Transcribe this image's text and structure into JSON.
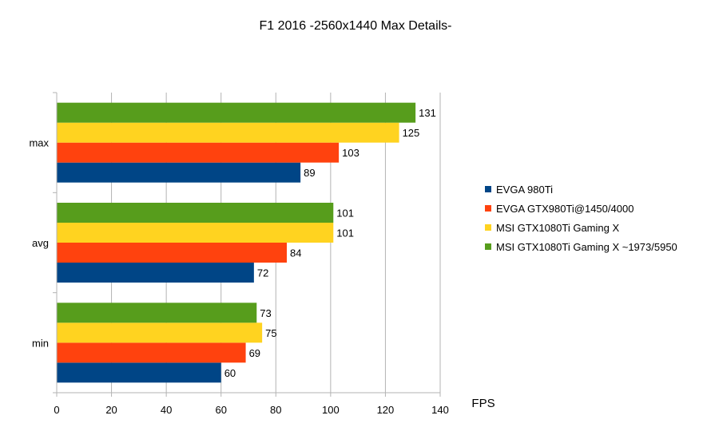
{
  "chart_data": {
    "type": "bar",
    "orientation": "horizontal",
    "title": "F1 2016 -2560x1440 Max Details-",
    "xlabel": "FPS",
    "ylabel": "",
    "categories": [
      "max",
      "avg",
      "min"
    ],
    "series": [
      {
        "name": "EVGA 980Ti",
        "color": "#004586",
        "values": [
          89,
          72,
          60
        ]
      },
      {
        "name": "EVGA GTX980Ti@1450/4000",
        "color": "#ff420e",
        "values": [
          103,
          84,
          69
        ]
      },
      {
        "name": "MSI GTX1080Ti Gaming X",
        "color": "#ffd320",
        "values": [
          125,
          101,
          75
        ]
      },
      {
        "name": "MSI GTX1080Ti Gaming X ~1973/5950",
        "color": "#579d1c",
        "values": [
          131,
          101,
          73
        ]
      }
    ],
    "xlim": [
      0,
      140
    ],
    "xticks": [
      0,
      20,
      40,
      60,
      80,
      100,
      120,
      140
    ],
    "grid": "vertical",
    "legend": "right",
    "data_labels": true
  }
}
